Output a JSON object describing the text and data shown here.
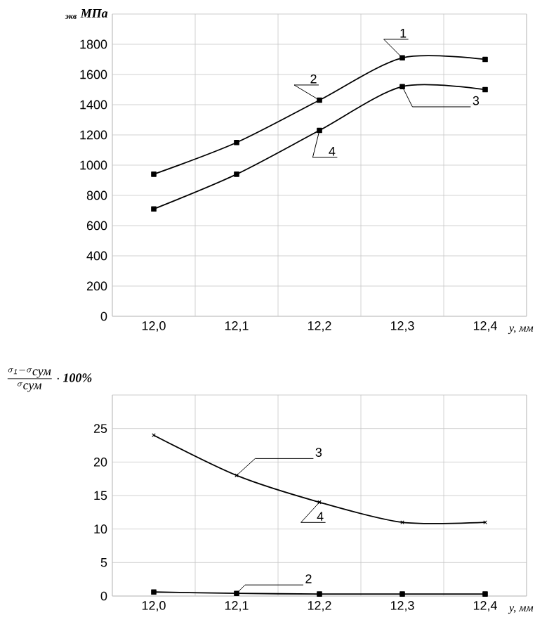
{
  "chart_data": [
    {
      "type": "line",
      "ylabel": "$_{экв}$ МПа",
      "xlabel": "y, мм",
      "categories": [
        "12,0",
        "12,1",
        "12,2",
        "12,3",
        "12,4"
      ],
      "ylim": [
        0,
        2000
      ],
      "yticks": [
        0,
        200,
        400,
        600,
        800,
        1000,
        1200,
        1400,
        1600,
        1800
      ],
      "grid": true,
      "marker": "square",
      "series": [
        {
          "color": "#000000",
          "values": [
            940,
            1150,
            1430,
            1710,
            1700
          ]
        },
        {
          "color": "#000000",
          "values": [
            710,
            940,
            1230,
            1520,
            1500
          ]
        }
      ],
      "annotations": [
        {
          "text": "1",
          "x": "12,3",
          "y": 1710
        },
        {
          "text": "2",
          "x": "12,2",
          "y": 1430
        },
        {
          "text": "3",
          "x": "12,3",
          "y": 1520
        },
        {
          "text": "4",
          "x": "12,2",
          "y": 1230
        }
      ]
    },
    {
      "type": "line",
      "ylabel": "\\frac{\\sigma_{\\mathit{1}}-\\sigma_{\\mbox{\\itshape сум}}}{\\sigma_{\\mbox{\\itshape сум}}}\\cdot\\mbox{\\bfseries\\itshape 100\\%}",
      "xlabel": "y, мм",
      "categories": [
        "12,0",
        "12,1",
        "12,2",
        "12,3",
        "12,4"
      ],
      "ylim": [
        0,
        30
      ],
      "yticks": [
        0,
        5,
        10,
        15,
        20,
        25
      ],
      "grid": true,
      "series": [
        {
          "color": "#000000",
          "marker": "square",
          "values": [
            0.6,
            0.4,
            0.3,
            0.3,
            0.3
          ]
        },
        {
          "color": "#000000",
          "marker": "cross",
          "values": [
            24,
            18,
            14,
            11,
            11
          ]
        }
      ],
      "annotations": [
        {
          "text": "2",
          "x": "12,1",
          "y": 0.4
        },
        {
          "text": "3",
          "x": "12,1",
          "y": 18
        },
        {
          "text": "4",
          "x": "12,2",
          "y": 14
        }
      ]
    }
  ]
}
